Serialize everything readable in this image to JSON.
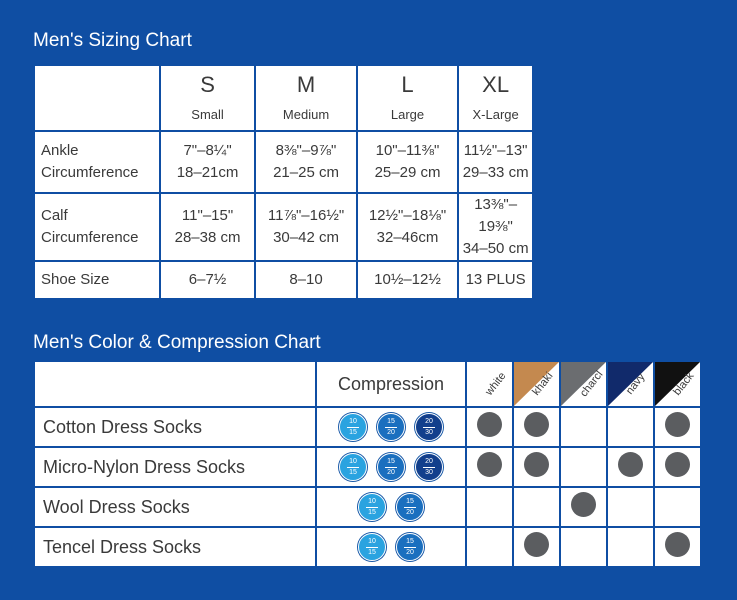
{
  "sizing": {
    "title": "Men's Sizing Chart",
    "columns": [
      {
        "letter": "S",
        "word": "Small"
      },
      {
        "letter": "M",
        "word": "Medium"
      },
      {
        "letter": "L",
        "word": "Large"
      },
      {
        "letter": "XL",
        "word": "X-Large"
      }
    ],
    "rows": [
      {
        "label1": "Ankle",
        "label2": "Circumference",
        "cells": [
          {
            "line1": "7\"–8¼\"",
            "line2": "18–21cm"
          },
          {
            "line1": "8⅜\"–9⅞\"",
            "line2": "21–25 cm"
          },
          {
            "line1": "10\"–11⅜\"",
            "line2": "25–29 cm"
          },
          {
            "line1": "11½\"–13\"",
            "line2": "29–33 cm"
          }
        ]
      },
      {
        "label1": "Calf",
        "label2": "Circumference",
        "cells": [
          {
            "line1": "11\"–15\"",
            "line2": "28–38 cm"
          },
          {
            "line1": "11⅞\"–16½\"",
            "line2": "30–42 cm"
          },
          {
            "line1": "12½\"–18⅛\"",
            "line2": "32–46cm"
          },
          {
            "line1": "13⅜\"–19⅜\"",
            "line2": "34–50 cm"
          }
        ]
      },
      {
        "label1": "Shoe Size",
        "label2": "",
        "cells": [
          {
            "line1": "6–7½",
            "line2": ""
          },
          {
            "line1": "8–10",
            "line2": ""
          },
          {
            "line1": "10½–12½",
            "line2": ""
          },
          {
            "line1": "13 PLUS",
            "line2": ""
          }
        ]
      }
    ]
  },
  "colors": {
    "title": "Men's Color & Compression Chart",
    "compression_header": "Compression",
    "swatches": [
      {
        "label": "white",
        "color": "#ffffff"
      },
      {
        "label": "khaki",
        "color": "#c4894f"
      },
      {
        "label": "charcl",
        "color": "#6b6d70"
      },
      {
        "label": "navy",
        "color": "#112a6b"
      },
      {
        "label": "black",
        "color": "#111111"
      }
    ],
    "badges": [
      {
        "top": "10",
        "bottom": "15"
      },
      {
        "top": "15",
        "bottom": "20"
      },
      {
        "top": "20",
        "bottom": "30"
      }
    ],
    "dot_color": "#5b5d60",
    "products": [
      {
        "name": "Cotton Dress Socks",
        "levels": 3,
        "colors": [
          true,
          true,
          false,
          false,
          true
        ]
      },
      {
        "name": "Micro-Nylon Dress Socks",
        "levels": 3,
        "colors": [
          true,
          true,
          false,
          true,
          true
        ]
      },
      {
        "name": "Wool Dress Socks",
        "levels": 2,
        "colors": [
          false,
          false,
          true,
          false,
          false
        ]
      },
      {
        "name": "Tencel Dress Socks",
        "levels": 2,
        "colors": [
          false,
          true,
          false,
          false,
          true
        ]
      }
    ]
  }
}
